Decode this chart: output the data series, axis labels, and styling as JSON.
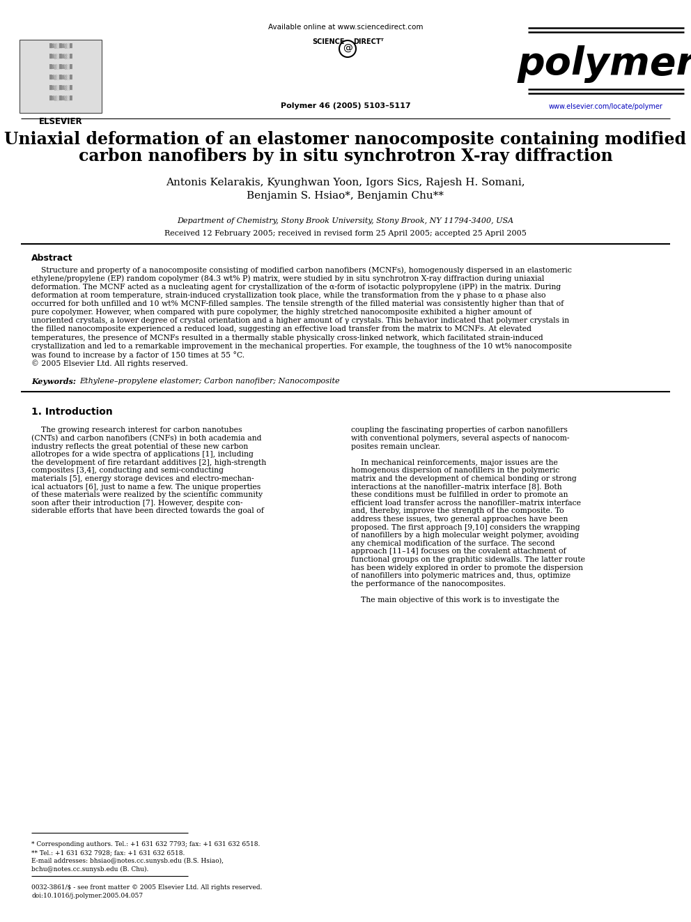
{
  "bg_color": "#ffffff",
  "elsevier_text": "ELSEVIER",
  "available_online": "Available online at www.sciencedirect.com",
  "journal_vol": "Polymer 46 (2005) 5103–5117",
  "journal_name": "polymer",
  "journal_url": "www.elsevier.com/locate/polymer",
  "title_line1": "Uniaxial deformation of an elastomer nanocomposite containing modified",
  "title_line2": "carbon nanofibers by in situ synchrotron X-ray diffraction",
  "authors_line1": "Antonis Kelarakis, Kyunghwan Yoon, Igors Sics, Rajesh H. Somani,",
  "authors_line2": "Benjamin S. Hsiao*, Benjamin Chu**",
  "affiliation": "Department of Chemistry, Stony Brook University, Stony Brook, NY 11794-3400, USA",
  "received": "Received 12 February 2005; received in revised form 25 April 2005; accepted 25 April 2005",
  "abstract_title": "Abstract",
  "abstract_lines": [
    "    Structure and property of a nanocomposite consisting of modified carbon nanofibers (MCNFs), homogenously dispersed in an elastomeric",
    "ethylene/propylene (EP) random copolymer (84.3 wt% P) matrix, were studied by in situ synchrotron X-ray diffraction during uniaxial",
    "deformation. The MCNF acted as a nucleating agent for crystallization of the α-form of isotactic polypropylene (iPP) in the matrix. During",
    "deformation at room temperature, strain-induced crystallization took place, while the transformation from the γ phase to α phase also",
    "occurred for both unfilled and 10 wt% MCNF-filled samples. The tensile strength of the filled material was consistently higher than that of",
    "pure copolymer. However, when compared with pure copolymer, the highly stretched nanocomposite exhibited a higher amount of",
    "unoriented crystals, a lower degree of crystal orientation and a higher amount of γ crystals. This behavior indicated that polymer crystals in",
    "the filled nanocomposite experienced a reduced load, suggesting an effective load transfer from the matrix to MCNFs. At elevated",
    "temperatures, the presence of MCNFs resulted in a thermally stable physically cross-linked network, which facilitated strain-induced",
    "crystallization and led to a remarkable improvement in the mechanical properties. For example, the toughness of the 10 wt% nanocomposite",
    "was found to increase by a factor of 150 times at 55 °C.",
    "© 2005 Elsevier Ltd. All rights reserved."
  ],
  "keywords_label": "Keywords:",
  "keywords_text": "Ethylene–propylene elastomer; Carbon nanofiber; Nanocomposite",
  "section1_title": "1. Introduction",
  "col1_lines": [
    "    The growing research interest for carbon nanotubes",
    "(CNTs) and carbon nanofibers (CNFs) in both academia and",
    "industry reflects the great potential of these new carbon",
    "allotropes for a wide spectra of applications [1], including",
    "the development of fire retardant additives [2], high-strength",
    "composites [3,4], conducting and semi-conducting",
    "materials [5], energy storage devices and electro-mechan-",
    "ical actuators [6], just to name a few. The unique properties",
    "of these materials were realized by the scientific community",
    "soon after their introduction [7]. However, despite con-",
    "siderable efforts that have been directed towards the goal of"
  ],
  "col2_lines": [
    "coupling the fascinating properties of carbon nanofillers",
    "with conventional polymers, several aspects of nanocom-",
    "posites remain unclear.",
    "",
    "    In mechanical reinforcements, major issues are the",
    "homogenous dispersion of nanofillers in the polymeric",
    "matrix and the development of chemical bonding or strong",
    "interactions at the nanofiller–matrix interface [8]. Both",
    "these conditions must be fulfilled in order to promote an",
    "efficient load transfer across the nanofiller–matrix interface",
    "and, thereby, improve the strength of the composite. To",
    "address these issues, two general approaches have been",
    "proposed. The first approach [9,10] considers the wrapping",
    "of nanofillers by a high molecular weight polymer, avoiding",
    "any chemical modification of the surface. The second",
    "approach [11–14] focuses on the covalent attachment of",
    "functional groups on the graphitic sidewalls. The latter route",
    "has been widely explored in order to promote the dispersion",
    "of nanofillers into polymeric matrices and, thus, optimize",
    "the performance of the nanocomposites.",
    "",
    "    The main objective of this work is to investigate the"
  ],
  "footnote1": "* Corresponding authors. Tel.: +1 631 632 7793; fax: +1 631 632 6518.",
  "footnote2": "** Tel.: +1 631 632 7928; fax: +1 631 632 6518.",
  "footnote3a": "E-mail addresses: bhsiao@notes.cc.sunysb.edu (B.S. Hsiao),",
  "footnote3b": "bchu@notes.cc.sunysb.edu (B. Chu).",
  "footnote4a": "0032-3861/$ - see front matter © 2005 Elsevier Ltd. All rights reserved.",
  "footnote4b": "doi:10.1016/j.polymer.2005.04.057"
}
